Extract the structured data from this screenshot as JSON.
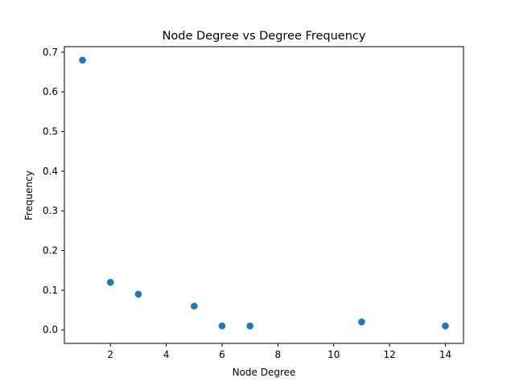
{
  "chart_data": {
    "type": "scatter",
    "title": "Node Degree vs Degree Frequency",
    "xlabel": "Node Degree",
    "ylabel": "Frequency",
    "xlim": [
      0.35,
      14.65
    ],
    "ylim": [
      -0.034,
      0.714
    ],
    "xticks": [
      2,
      4,
      6,
      8,
      10,
      12,
      14
    ],
    "yticks": [
      0.0,
      0.1,
      0.2,
      0.3,
      0.4,
      0.5,
      0.6,
      0.7
    ],
    "grid": false,
    "series": [
      {
        "color": "#1f77b4",
        "x": [
          1,
          2,
          3,
          5,
          6,
          7,
          11,
          14
        ],
        "y": [
          0.68,
          0.12,
          0.09,
          0.06,
          0.01,
          0.01,
          0.02,
          0.01
        ]
      }
    ]
  }
}
